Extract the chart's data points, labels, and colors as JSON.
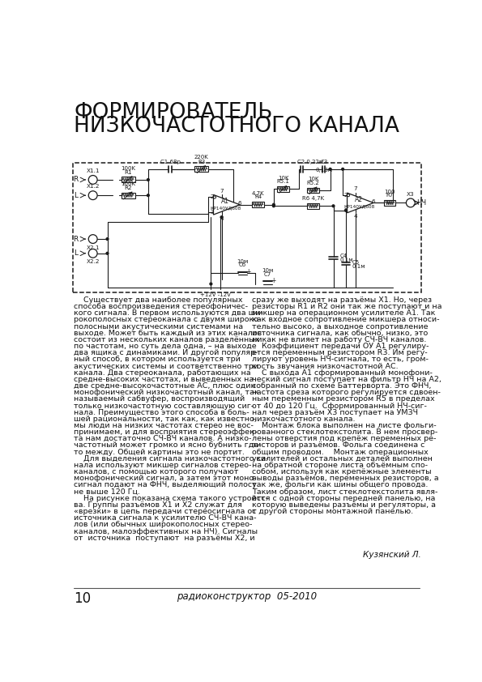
{
  "title_line1": "ФОРМИРОВАТЕЛЬ",
  "title_line2": "НИЗКОЧАСТОТНОГО КАНАЛА",
  "body_col1": [
    "    Существует два наиболее популярных",
    "способа воспроизведения стереофоничес-",
    "кого сигнала. В первом используются два ши-",
    "рокополосных стереоканала с двумя широко-",
    "полосными акустическими системами на",
    "выходе. Может быть каждый из этих каналов",
    "состоит из нескольких каналов разделённых",
    "по частотам, но суть дела одна, – на выходе",
    "два ящика с динамиками. И другой популяр-",
    "ный способ, в котором используется три",
    "акустических системы и соответственно три",
    "канала. Два стереоканала, работающих на",
    "средне-высоких частотах, и выведенных на",
    "две средне-высокочастотные АС, плюс один",
    "монофонический низкочастотный канал, так",
    "называемый сабвуфер, воспроизводящий",
    "только низкочастотную составляющую сиг-",
    "нала. Преимущество этого способа в боль-",
    "шей рациональности, так как, как известно,",
    "мы люди на низких частотах стерео не вос-",
    "принимаем, и для восприятия стереоэффек-",
    "та нам достаточно СЧ-ВЧ каналов. А низко-",
    "частотный может громко и ясно бубнить где-",
    "то между. Общей картины это не портит.",
    "    Для выделения сигнала низкочастотного ка-",
    "нала используют микшер сигналов стерео-",
    "каналов, с помощью которого получают",
    "монофонический сигнал, а затем этот моно-",
    "сигнал подают на ФНЧ, выделяющий полосу",
    "не выше 120 Гц.",
    "    На рисунке показана схема такого устройст-",
    "ва. Группы разъёмов Х1 и Х2 служат для",
    "«врезки» в цепь передачи стереосигнала от",
    "источника сигнала к усилителю СЧ-ВЧ кана-",
    "лов (или обычных широкополосных стерео-",
    "каналов, малоэффективных на НЧ). Сигналы",
    "от  источника  поступают  на разъёмы Х2, и"
  ],
  "body_col2": [
    "сразу же выходят на разъёмы X1. Но, через",
    "резисторы R1 и R2 они так же поступают и на",
    "микшер на операционном усилителе А1. Так",
    "как входное сопротивление микшера относи-",
    "тельно высоко, а выходное сопротивление",
    "источника сигнала, как обычно, низко, это",
    "никак не влияет на работу СЧ-ВЧ каналов.",
    "    Коэффициент передачи ОУ А1 регулиру-",
    "ется переменным резистором R3. Им регу-",
    "лируют уровень НЧ-сигнала, то есть, гром-",
    "кость звучания низкочастотной АС.",
    "    С выхода А1 сформированный монофони-",
    "ческий сигнал поступает на фильтр НЧ на А2,",
    "собранный по схеме Баттерворта. Это ФНЧ,",
    "частота среза которого регулируется сдвоен-",
    "ным переменным резистором R5 в пределах",
    "от 40 до 120 Гц.  Сформированный НЧ-сиг-",
    "нал через разъём Х3 поступает на УМЗЧ",
    "низкочастотного канала.",
    "    Монтаж блока выполнен на листе фольги-",
    "рованного стеклотекстолита. В нем просвер-",
    "лены отверстия под крепёж переменных ре-",
    "зисторов и разъёмов. Фольга соединена с",
    "общим проводом.    Монтаж операционных",
    "усилителей и остальных деталей выполнен",
    "на обратной стороне листа объёмным спо-",
    "собом, используя как крепёжные элементы",
    "выводы разъёмов, переменных резисторов, а",
    "так же, фольги как шины общего провода.",
    "Таким образом, лист стеклотекстолита явля-",
    "ется с одной стороны передней панелью, на",
    "которую выведены разъёмы и регуляторы, а",
    "с другой стороны монтажной панелью."
  ],
  "author": "Кузянский Л.",
  "footer_page": "10",
  "footer_journal": "радиоконструктор  05-2010"
}
